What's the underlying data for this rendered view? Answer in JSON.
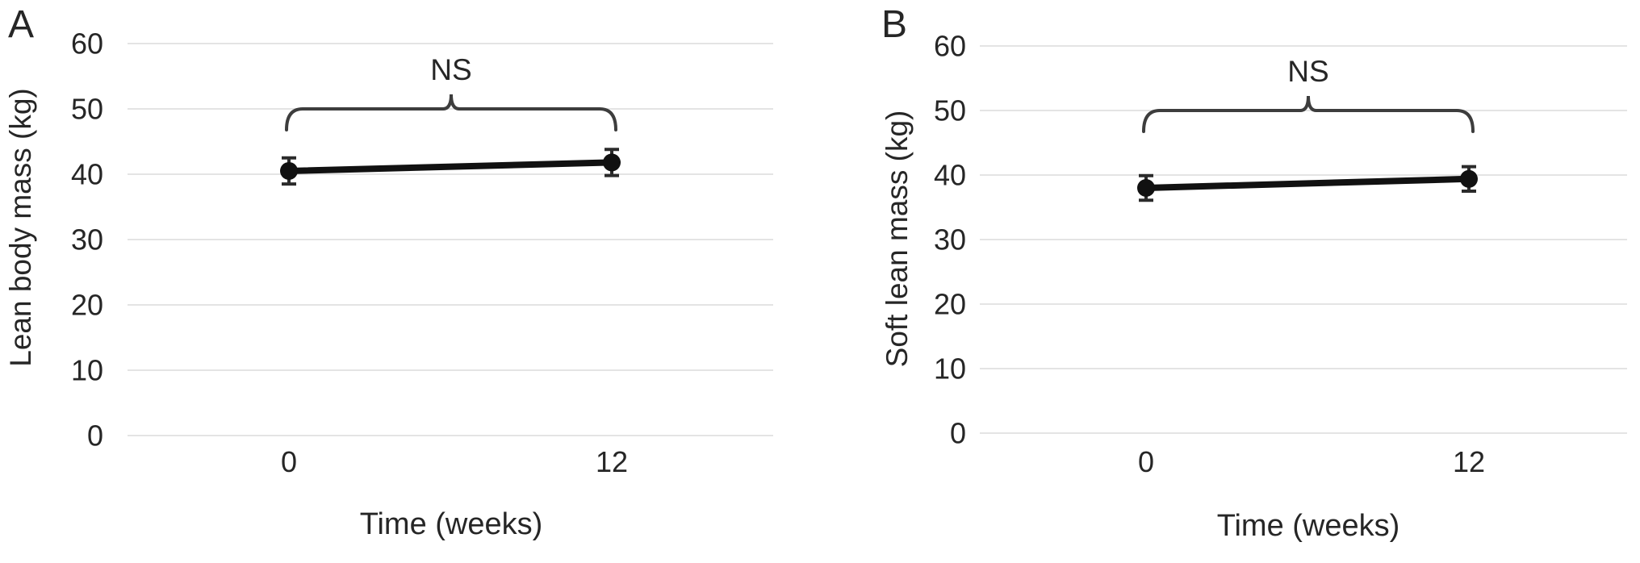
{
  "figure": {
    "background": "#ffffff",
    "text_color": "#262626",
    "gridline_color": "#e4e4e4",
    "line_color": "#111111",
    "marker_color": "#111111",
    "error_bar_color": "#2b2b2b",
    "bracket_color": "#3d3d3d"
  },
  "chart_data": [
    {
      "type": "line",
      "panel_label": "A",
      "xlabel": "Time (weeks)",
      "ylabel": "Lean body mass (kg)",
      "x": [
        0,
        12
      ],
      "x_tick_labels": [
        "0",
        "12"
      ],
      "yticks": [
        "0",
        "10",
        "20",
        "30",
        "40",
        "50",
        "60"
      ],
      "ytick_values": [
        0,
        10,
        20,
        30,
        40,
        50,
        60
      ],
      "ylim": [
        0,
        60
      ],
      "grid": "horizontal-only",
      "legend": "none",
      "series": [
        {
          "name": "Lean body mass",
          "values": [
            40.5,
            41.8
          ],
          "errors": [
            2.0,
            2.0
          ]
        }
      ],
      "annotation": {
        "label": "NS",
        "span_categories": [
          "0",
          "12"
        ],
        "bracket_y_value": 50
      }
    },
    {
      "type": "line",
      "panel_label": "B",
      "xlabel": "Time (weeks)",
      "ylabel": "Soft lean mass (kg)",
      "x": [
        0,
        12
      ],
      "x_tick_labels": [
        "0",
        "12"
      ],
      "yticks": [
        "0",
        "10",
        "20",
        "30",
        "40",
        "50",
        "60"
      ],
      "ytick_values": [
        0,
        10,
        20,
        30,
        40,
        50,
        60
      ],
      "ylim": [
        0,
        60
      ],
      "grid": "horizontal-only",
      "legend": "none",
      "series": [
        {
          "name": "Soft lean mass",
          "values": [
            38.0,
            39.4
          ],
          "errors": [
            1.9,
            1.9
          ]
        }
      ],
      "annotation": {
        "label": "NS",
        "span_categories": [
          "0",
          "12"
        ],
        "bracket_y_value": 50
      }
    }
  ]
}
